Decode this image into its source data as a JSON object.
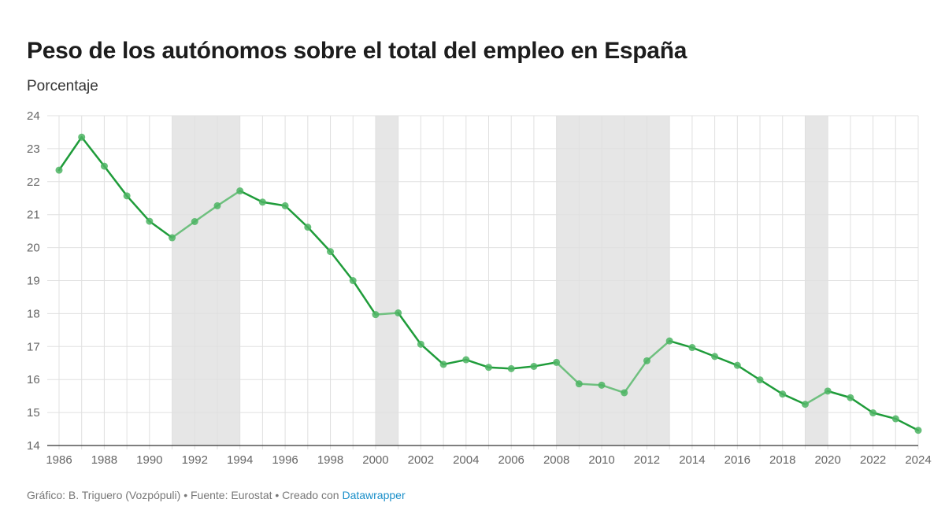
{
  "chart_data": {
    "type": "line",
    "title": "Peso de los autónomos sobre el total del empleo en España",
    "subtitle": "Porcentaje",
    "ylim": [
      14,
      24
    ],
    "xlim": [
      1986,
      2024
    ],
    "y_ticks": [
      14,
      15,
      16,
      17,
      18,
      19,
      20,
      21,
      22,
      23,
      24
    ],
    "x_ticks": [
      1986,
      1988,
      1990,
      1992,
      1994,
      1996,
      1998,
      2000,
      2002,
      2004,
      2006,
      2008,
      2010,
      2012,
      2014,
      2016,
      2018,
      2020,
      2022,
      2024
    ],
    "grid": true,
    "shaded_periods": [
      [
        1991,
        1994
      ],
      [
        2000,
        2001
      ],
      [
        2008,
        2013
      ],
      [
        2019,
        2020
      ]
    ],
    "series": [
      {
        "x": [
          1986,
          1987,
          1988,
          1989,
          1990,
          1991,
          1992,
          1993,
          1994,
          1995,
          1996,
          1997,
          1998,
          1999,
          2000,
          2001,
          2002,
          2003,
          2004,
          2005,
          2006,
          2007,
          2008,
          2009,
          2010,
          2011,
          2012,
          2013,
          2014,
          2015,
          2016,
          2017,
          2018,
          2019,
          2020,
          2021,
          2022,
          2023,
          2024
        ],
        "values": [
          22.35,
          23.35,
          22.47,
          21.57,
          20.8,
          20.3,
          20.79,
          21.27,
          21.72,
          21.38,
          21.27,
          20.62,
          19.88,
          19.0,
          17.97,
          18.02,
          17.07,
          16.46,
          16.6,
          16.37,
          16.33,
          16.4,
          16.52,
          15.87,
          15.83,
          15.6,
          16.57,
          17.17,
          16.97,
          16.7,
          16.43,
          15.99,
          15.56,
          15.25,
          15.65,
          15.45,
          14.99,
          14.81,
          14.46
        ]
      }
    ],
    "colors": {
      "line": "#1f9c3a",
      "line_recession": "#6fc07f",
      "shade": "#e6e6e6",
      "grid": "#e0e0e0"
    }
  },
  "footer": {
    "text": "Gráfico: B. Triguero (Vozpópuli) • Fuente: Eurostat • Creado con ",
    "link": "Datawrapper"
  }
}
